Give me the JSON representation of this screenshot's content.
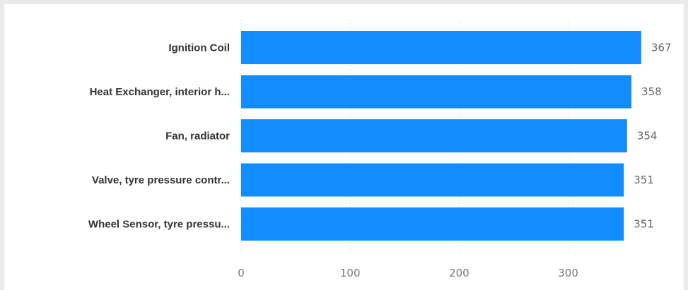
{
  "chart_data": {
    "type": "bar",
    "orientation": "horizontal",
    "categories": [
      "Ignition Coil",
      "Heat Exchanger, interior h...",
      "Fan, radiator",
      "Valve, tyre pressure contr...",
      "Wheel Sensor, tyre pressu..."
    ],
    "values": [
      367,
      358,
      354,
      351,
      351
    ],
    "data_labels": [
      "367",
      "358",
      "354",
      "351",
      "351"
    ],
    "x_ticks": [
      0,
      100,
      200,
      300
    ],
    "x_tick_labels": [
      "0",
      "100",
      "200",
      "300"
    ],
    "xlim": [
      0,
      400
    ],
    "grid": true,
    "legend": "none",
    "bar_color": "#118dff"
  }
}
